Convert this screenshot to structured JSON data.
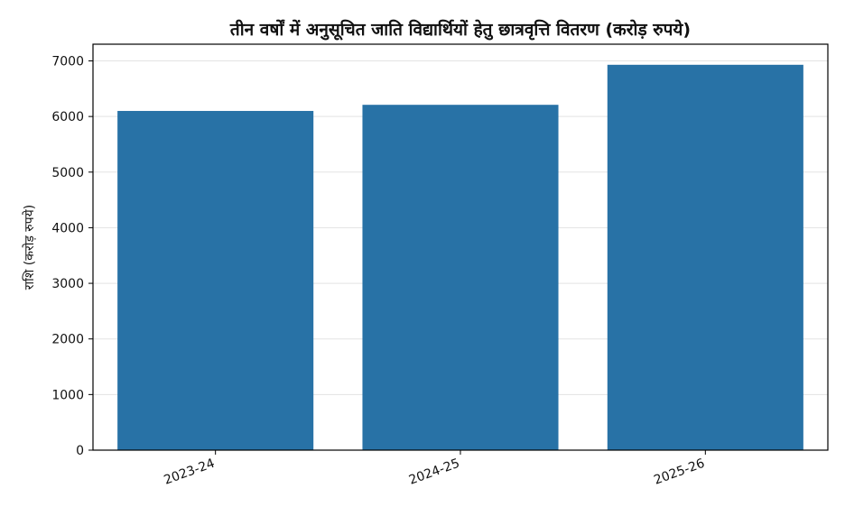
{
  "chart_data": {
    "type": "bar",
    "title": "तीन वर्षों में अनुसूचित जाति विद्यार्थियों हेतु छात्रवृत्ति वितरण (करोड़ रुपये)",
    "xlabel": "",
    "ylabel": "राशि (करोड़ रुपये)",
    "categories": [
      "2023-24",
      "2024-25",
      "2025-26"
    ],
    "values": [
      6100,
      6210,
      6930
    ],
    "ylim": [
      0,
      7300
    ],
    "yticks": [
      0,
      1000,
      2000,
      3000,
      4000,
      5000,
      6000,
      7000
    ],
    "grid": "horizontal",
    "bar_color": "#2872a6",
    "grid_color": "#e3e3e3"
  }
}
